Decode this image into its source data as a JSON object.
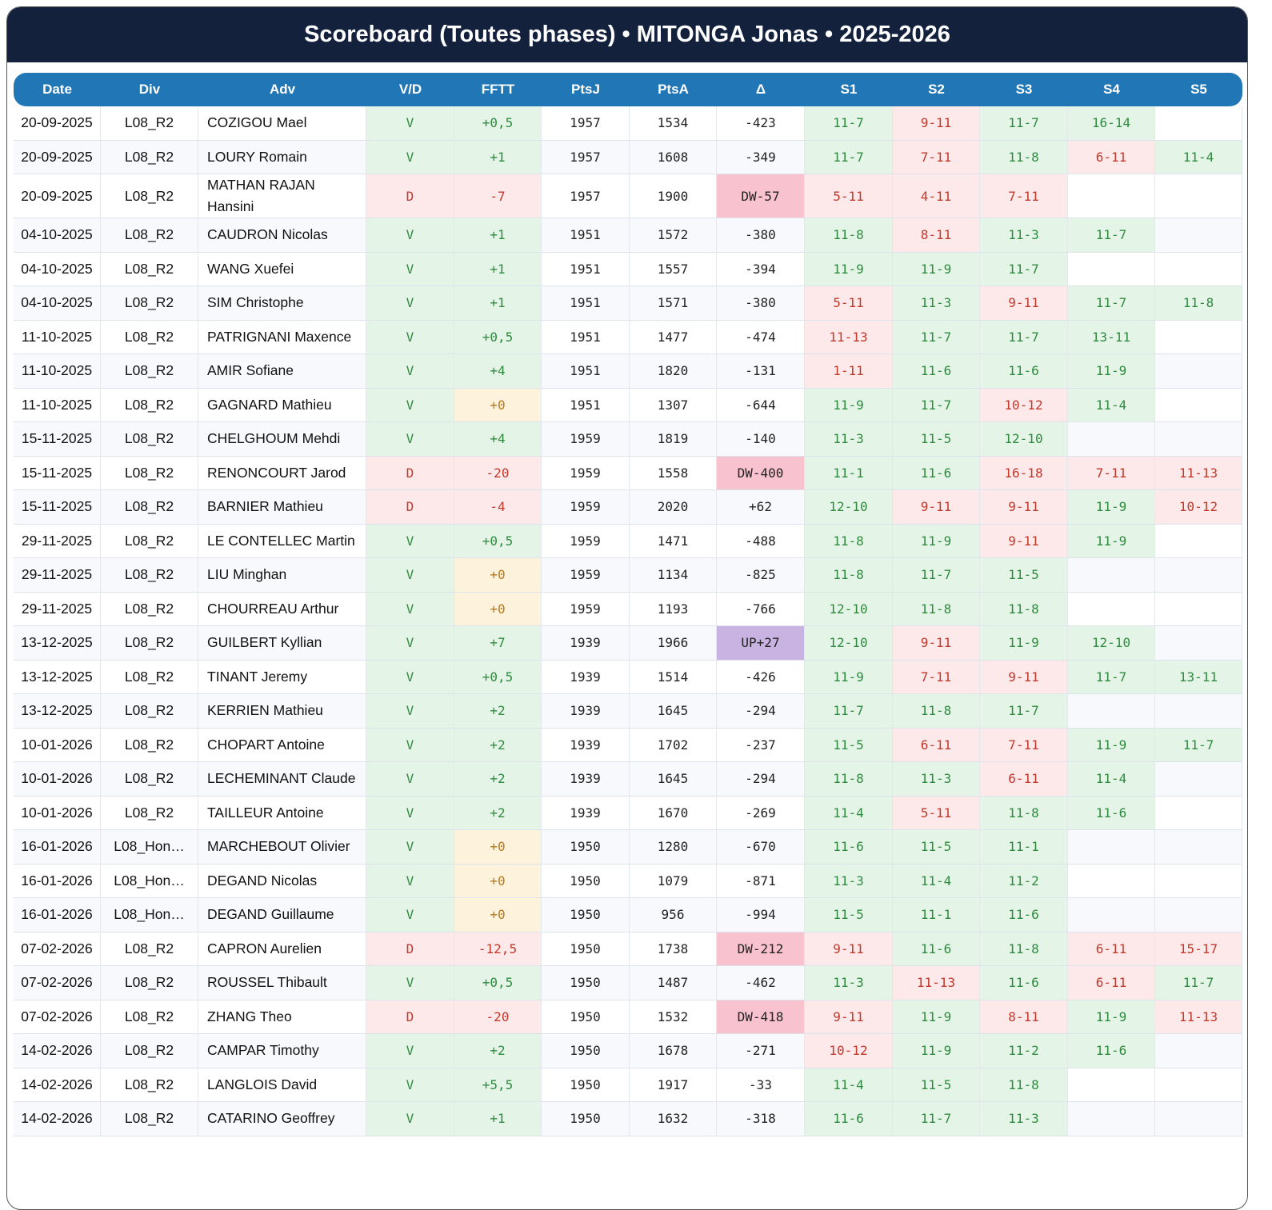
{
  "header": {
    "title": "Scoreboard (Toutes phases) • MITONGA Jonas • 2025-2026"
  },
  "table": {
    "columns": [
      "Date",
      "Div",
      "Adv",
      "V/D",
      "FFTT",
      "PtsJ",
      "PtsA",
      "Δ",
      "S1",
      "S2",
      "S3",
      "S4",
      "S5"
    ],
    "rows": [
      [
        "20-09-2025",
        "L08_R2",
        "COZIGOU Mael",
        "V",
        "+0,5",
        "1957",
        "1534",
        "-423",
        "11-7",
        "9-11",
        "11-7",
        "16-14",
        null
      ],
      [
        "20-09-2025",
        "L08_R2",
        "LOURY Romain",
        "V",
        "+1",
        "1957",
        "1608",
        "-349",
        "11-7",
        "7-11",
        "11-8",
        "6-11",
        "11-4"
      ],
      [
        "20-09-2025",
        "L08_R2",
        "MATHAN RAJAN Hansini",
        "D",
        "-7",
        "1957",
        "1900",
        "DW-57",
        "5-11",
        "4-11",
        "7-11",
        null,
        null
      ],
      [
        "04-10-2025",
        "L08_R2",
        "CAUDRON Nicolas",
        "V",
        "+1",
        "1951",
        "1572",
        "-380",
        "11-8",
        "8-11",
        "11-3",
        "11-7",
        null
      ],
      [
        "04-10-2025",
        "L08_R2",
        "WANG Xuefei",
        "V",
        "+1",
        "1951",
        "1557",
        "-394",
        "11-9",
        "11-9",
        "11-7",
        null,
        null
      ],
      [
        "04-10-2025",
        "L08_R2",
        "SIM Christophe",
        "V",
        "+1",
        "1951",
        "1571",
        "-380",
        "5-11",
        "11-3",
        "9-11",
        "11-7",
        "11-8"
      ],
      [
        "11-10-2025",
        "L08_R2",
        "PATRIGNANI Maxence",
        "V",
        "+0,5",
        "1951",
        "1477",
        "-474",
        "11-13",
        "11-7",
        "11-7",
        "13-11",
        null
      ],
      [
        "11-10-2025",
        "L08_R2",
        "AMIR Sofiane",
        "V",
        "+4",
        "1951",
        "1820",
        "-131",
        "1-11",
        "11-6",
        "11-6",
        "11-9",
        null
      ],
      [
        "11-10-2025",
        "L08_R2",
        "GAGNARD Mathieu",
        "V",
        "+0",
        "1951",
        "1307",
        "-644",
        "11-9",
        "11-7",
        "10-12",
        "11-4",
        null
      ],
      [
        "15-11-2025",
        "L08_R2",
        "CHELGHOUM Mehdi",
        "V",
        "+4",
        "1959",
        "1819",
        "-140",
        "11-3",
        "11-5",
        "12-10",
        null,
        null
      ],
      [
        "15-11-2025",
        "L08_R2",
        "RENONCOURT Jarod",
        "D",
        "-20",
        "1959",
        "1558",
        "DW-400",
        "11-1",
        "11-6",
        "16-18",
        "7-11",
        "11-13"
      ],
      [
        "15-11-2025",
        "L08_R2",
        "BARNIER Mathieu",
        "D",
        "-4",
        "1959",
        "2020",
        "+62",
        "12-10",
        "9-11",
        "9-11",
        "11-9",
        "10-12"
      ],
      [
        "29-11-2025",
        "L08_R2",
        "LE CONTELLEC Martin",
        "V",
        "+0,5",
        "1959",
        "1471",
        "-488",
        "11-8",
        "11-9",
        "9-11",
        "11-9",
        null
      ],
      [
        "29-11-2025",
        "L08_R2",
        "LIU Minghan",
        "V",
        "+0",
        "1959",
        "1134",
        "-825",
        "11-8",
        "11-7",
        "11-5",
        null,
        null
      ],
      [
        "29-11-2025",
        "L08_R2",
        "CHOURREAU Arthur",
        "V",
        "+0",
        "1959",
        "1193",
        "-766",
        "12-10",
        "11-8",
        "11-8",
        null,
        null
      ],
      [
        "13-12-2025",
        "L08_R2",
        "GUILBERT Kyllian",
        "V",
        "+7",
        "1939",
        "1966",
        "UP+27",
        "12-10",
        "9-11",
        "11-9",
        "12-10",
        null
      ],
      [
        "13-12-2025",
        "L08_R2",
        "TINANT Jeremy",
        "V",
        "+0,5",
        "1939",
        "1514",
        "-426",
        "11-9",
        "7-11",
        "9-11",
        "11-7",
        "13-11"
      ],
      [
        "13-12-2025",
        "L08_R2",
        "KERRIEN Mathieu",
        "V",
        "+2",
        "1939",
        "1645",
        "-294",
        "11-7",
        "11-8",
        "11-7",
        null,
        null
      ],
      [
        "10-01-2026",
        "L08_R2",
        "CHOPART Antoine",
        "V",
        "+2",
        "1939",
        "1702",
        "-237",
        "11-5",
        "6-11",
        "7-11",
        "11-9",
        "11-7"
      ],
      [
        "10-01-2026",
        "L08_R2",
        "LECHEMINANT Claude",
        "V",
        "+2",
        "1939",
        "1645",
        "-294",
        "11-8",
        "11-3",
        "6-11",
        "11-4",
        null
      ],
      [
        "10-01-2026",
        "L08_R2",
        "TAILLEUR Antoine",
        "V",
        "+2",
        "1939",
        "1670",
        "-269",
        "11-4",
        "5-11",
        "11-8",
        "11-6",
        null
      ],
      [
        "16-01-2026",
        "L08_Hon…",
        "MARCHEBOUT Olivier",
        "V",
        "+0",
        "1950",
        "1280",
        "-670",
        "11-6",
        "11-5",
        "11-1",
        null,
        null
      ],
      [
        "16-01-2026",
        "L08_Hon…",
        "DEGAND Nicolas",
        "V",
        "+0",
        "1950",
        "1079",
        "-871",
        "11-3",
        "11-4",
        "11-2",
        null,
        null
      ],
      [
        "16-01-2026",
        "L08_Hon…",
        "DEGAND Guillaume",
        "V",
        "+0",
        "1950",
        "956",
        "-994",
        "11-5",
        "11-1",
        "11-6",
        null,
        null
      ],
      [
        "07-02-2026",
        "L08_R2",
        "CAPRON Aurelien",
        "D",
        "-12,5",
        "1950",
        "1738",
        "DW-212",
        "9-11",
        "11-6",
        "11-8",
        "6-11",
        "15-17"
      ],
      [
        "07-02-2026",
        "L08_R2",
        "ROUSSEL Thibault",
        "V",
        "+0,5",
        "1950",
        "1487",
        "-462",
        "11-3",
        "11-13",
        "11-6",
        "6-11",
        "11-7"
      ],
      [
        "07-02-2026",
        "L08_R2",
        "ZHANG Theo",
        "D",
        "-20",
        "1950",
        "1532",
        "DW-418",
        "9-11",
        "11-9",
        "8-11",
        "11-9",
        "11-13"
      ],
      [
        "14-02-2026",
        "L08_R2",
        "CAMPAR Timothy",
        "V",
        "+2",
        "1950",
        "1678",
        "-271",
        "10-12",
        "11-9",
        "11-2",
        "11-6",
        null
      ],
      [
        "14-02-2026",
        "L08_R2",
        "LANGLOIS David",
        "V",
        "+5,5",
        "1950",
        "1917",
        "-33",
        "11-4",
        "11-5",
        "11-8",
        null,
        null
      ],
      [
        "14-02-2026",
        "L08_R2",
        "CATARINO Geoffrey",
        "V",
        "+1",
        "1950",
        "1632",
        "-318",
        "11-6",
        "11-7",
        "11-3",
        null,
        null
      ]
    ]
  }
}
